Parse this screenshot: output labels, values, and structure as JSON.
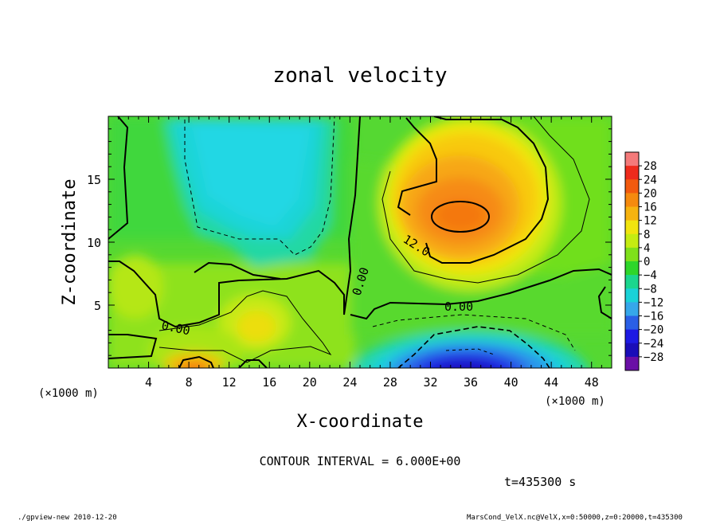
{
  "chart_data": {
    "type": "heatmap",
    "title": "zonal velocity",
    "xlabel": "X-coordinate",
    "ylabel": "Z-coordinate",
    "x_unit_label": "(×1000 m)",
    "x_unit_label_right": "(×1000 m)",
    "xlim": [
      0,
      50
    ],
    "ylim": [
      0,
      20
    ],
    "x_ticks": [
      4,
      8,
      12,
      16,
      20,
      24,
      28,
      32,
      36,
      40,
      44,
      48
    ],
    "y_ticks": [
      5,
      10,
      15
    ],
    "colorbar": {
      "levels": [
        28,
        24,
        20,
        16,
        12,
        8,
        4,
        0,
        -4,
        -8,
        -12,
        -16,
        -20,
        -24,
        -28
      ],
      "labels": [
        "28",
        "24",
        "20",
        "16",
        "12",
        "8",
        "4",
        "0",
        "−4",
        "−8",
        "−12",
        "−16",
        "−20",
        "−24",
        "−28"
      ],
      "colors": [
        "#f47a7a",
        "#ee2b1c",
        "#f25a0e",
        "#f58a0e",
        "#f6b30f",
        "#f1e40e",
        "#c5ec12",
        "#7fe01b",
        "#2ed62a",
        "#1bd68e",
        "#1ad2d7",
        "#36a7ea",
        "#2a5fe6",
        "#1d1ae3",
        "#1a0db8",
        "#6a0fa6"
      ]
    },
    "field_features": [
      {
        "x": 35,
        "z": 12,
        "value": 18
      },
      {
        "x": 37,
        "z": 1,
        "value": -20
      },
      {
        "x": 17,
        "z": 14,
        "value": -8
      },
      {
        "x": 9,
        "z": 0.5,
        "value": 16
      },
      {
        "x": 15,
        "z": 3.5,
        "value": 10
      }
    ],
    "contour_labels": [
      "12.0",
      "0.00",
      "0.00",
      "0.00"
    ],
    "contour_interval_text": "CONTOUR INTERVAL = 6.000E+00",
    "time_text": "t=435300 s"
  },
  "footer": {
    "left": "./gpview-new  2010-12-20",
    "right": "MarsCond_VelX.nc@VelX,x=0:50000,z=0:20000,t=435300"
  }
}
